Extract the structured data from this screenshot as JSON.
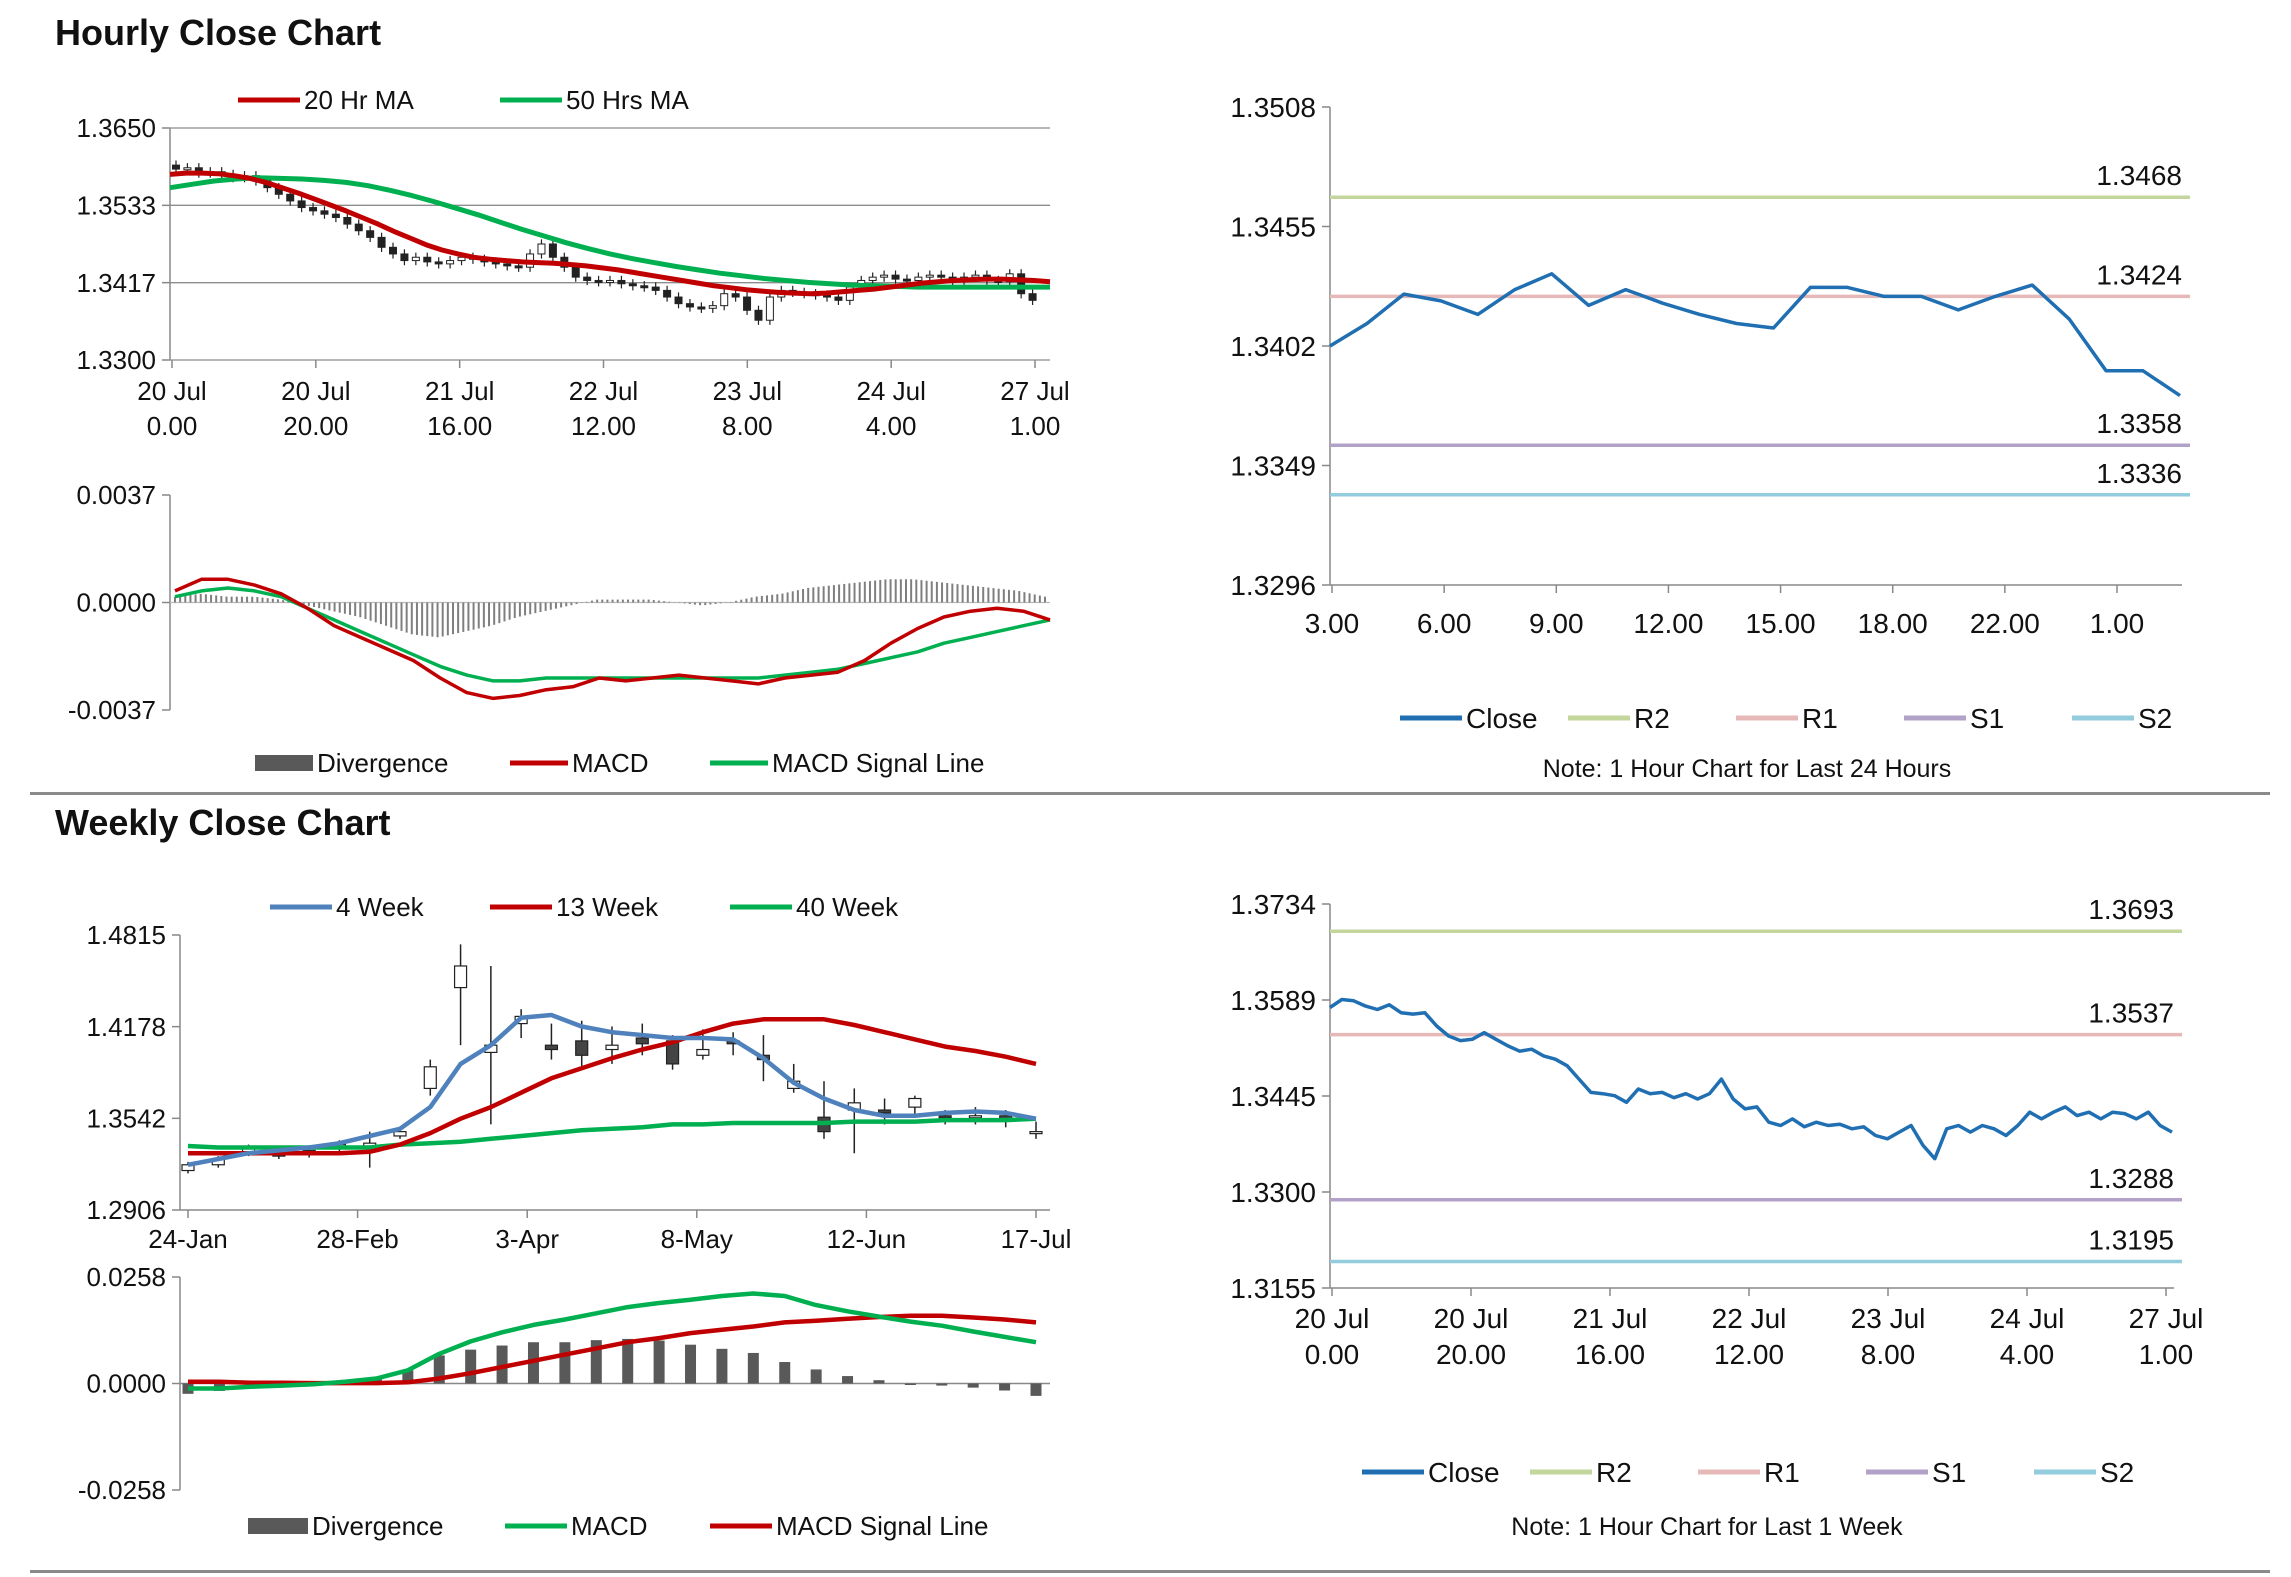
{
  "sections": {
    "hourly_title": "Hourly Close Chart",
    "weekly_title": "Weekly Close Chart"
  },
  "colors": {
    "red": "#c00000",
    "green": "#00b050",
    "blue_ma": "#4f81bd",
    "close": "#1f6fb2",
    "r2": "#c3d69b",
    "r1": "#e6b9b8",
    "s1": "#b3a2c7",
    "s2": "#93cddd",
    "div": "#595959"
  },
  "chart_data": [
    {
      "id": "hourly_price",
      "type": "candlestick",
      "title": "",
      "legend": [
        "20 Hr MA",
        "50 Hrs MA"
      ],
      "yticks": [
        "1.3650",
        "1.3533",
        "1.3417",
        "1.3300"
      ],
      "ylim": [
        1.33,
        1.365
      ],
      "xticks": [
        [
          "20 Jul",
          "0.00"
        ],
        [
          "20 Jul",
          "20.00"
        ],
        [
          "21 Jul",
          "16.00"
        ],
        [
          "22 Jul",
          "12.00"
        ],
        [
          "23 Jul",
          "8.00"
        ],
        [
          "24 Jul",
          "4.00"
        ],
        [
          "27 Jul",
          "1.00"
        ]
      ],
      "close": [
        1.3588,
        1.359,
        1.3582,
        1.3584,
        1.358,
        1.3575,
        1.3578,
        1.357,
        1.356,
        1.355,
        1.354,
        1.353,
        1.3525,
        1.352,
        1.3515,
        1.3505,
        1.3495,
        1.3485,
        1.347,
        1.346,
        1.345,
        1.3455,
        1.3448,
        1.3445,
        1.345,
        1.3455,
        1.3452,
        1.3448,
        1.3445,
        1.3442,
        1.344,
        1.346,
        1.3475,
        1.3455,
        1.344,
        1.3425,
        1.342,
        1.3418,
        1.342,
        1.3415,
        1.3412,
        1.341,
        1.3405,
        1.3395,
        1.3385,
        1.338,
        1.3378,
        1.3382,
        1.34,
        1.3395,
        1.3375,
        1.336,
        1.3395,
        1.3405,
        1.3402,
        1.34,
        1.3398,
        1.3395,
        1.339,
        1.341,
        1.342,
        1.3425,
        1.3428,
        1.3422,
        1.342,
        1.3425,
        1.3428,
        1.3425,
        1.342,
        1.3425,
        1.3428,
        1.342,
        1.3418,
        1.343,
        1.34,
        1.339
      ],
      "ma20": [
        1.358,
        1.3582,
        1.3582,
        1.3581,
        1.3578,
        1.3574,
        1.3568,
        1.356,
        1.3552,
        1.3543,
        1.3534,
        1.3525,
        1.3515,
        1.3505,
        1.3494,
        1.3484,
        1.3474,
        1.3466,
        1.346,
        1.3455,
        1.3452,
        1.345,
        1.3448,
        1.3447,
        1.3446,
        1.3444,
        1.3442,
        1.3439,
        1.3436,
        1.3432,
        1.3428,
        1.3424,
        1.342,
        1.3416,
        1.3412,
        1.3409,
        1.3406,
        1.3404,
        1.3402,
        1.3401,
        1.34,
        1.3401,
        1.3403,
        1.3405,
        1.3407,
        1.341,
        1.3413,
        1.3416,
        1.3418,
        1.342,
        1.3421,
        1.3422,
        1.3422,
        1.3421,
        1.342,
        1.3418
      ],
      "ma50": [
        1.356,
        1.3565,
        1.357,
        1.3573,
        1.3575,
        1.3574,
        1.3573,
        1.3571,
        1.3568,
        1.3563,
        1.3556,
        1.3548,
        1.3539,
        1.3529,
        1.3519,
        1.3508,
        1.3497,
        1.3487,
        1.3477,
        1.3468,
        1.346,
        1.3453,
        1.3447,
        1.3441,
        1.3436,
        1.3431,
        1.3427,
        1.3423,
        1.342,
        1.3417,
        1.3415,
        1.3413,
        1.3412,
        1.3411,
        1.341,
        1.341,
        1.341,
        1.341,
        1.341,
        1.341,
        1.341
      ]
    },
    {
      "id": "hourly_macd",
      "type": "macd",
      "legend": [
        "Divergence",
        "MACD",
        "MACD Signal Line"
      ],
      "yticks": [
        "0.0037",
        "0.0000",
        "-0.0037"
      ],
      "ylim": [
        -0.0037,
        0.0037
      ],
      "macd": [
        0.0004,
        0.0008,
        0.0008,
        0.0006,
        0.0003,
        -0.0002,
        -0.0008,
        -0.0012,
        -0.0016,
        -0.002,
        -0.0026,
        -0.0031,
        -0.0033,
        -0.0032,
        -0.003,
        -0.0029,
        -0.0026,
        -0.0027,
        -0.0026,
        -0.0025,
        -0.0026,
        -0.0027,
        -0.0028,
        -0.0026,
        -0.0025,
        -0.0024,
        -0.002,
        -0.0014,
        -0.0009,
        -0.0005,
        -0.0003,
        -0.0002,
        -0.0003,
        -0.0006
      ],
      "signal": [
        0.0002,
        0.0004,
        0.0005,
        0.0004,
        0.0002,
        -0.0002,
        -0.0006,
        -0.001,
        -0.0014,
        -0.0018,
        -0.0022,
        -0.0025,
        -0.0027,
        -0.0027,
        -0.0026,
        -0.0026,
        -0.0026,
        -0.0026,
        -0.0026,
        -0.0026,
        -0.0026,
        -0.0026,
        -0.0026,
        -0.0025,
        -0.0024,
        -0.0023,
        -0.0021,
        -0.0019,
        -0.0017,
        -0.0014,
        -0.0012,
        -0.001,
        -0.0008,
        -0.0006
      ],
      "divergence": [
        0.0002,
        0.0003,
        0.0002,
        0.0002,
        0.0001,
        -0.0001,
        -0.0003,
        -0.0005,
        -0.0008,
        -0.0011,
        -0.0012,
        -0.001,
        -0.0008,
        -0.0005,
        -0.0003,
        -0.0001,
        0.0001,
        0.0001,
        0.0001,
        0.0,
        -0.0001,
        0.0,
        0.0002,
        0.0003,
        0.0005,
        0.0006,
        0.0007,
        0.0008,
        0.0008,
        0.0007,
        0.0006,
        0.0005,
        0.0004,
        0.0002
      ]
    },
    {
      "id": "hourly_close",
      "type": "line",
      "legend": [
        "Close",
        "R2",
        "R1",
        "S1",
        "S2"
      ],
      "note": "Note: 1 Hour Chart for Last 24 Hours",
      "yticks": [
        "1.3508",
        "1.3455",
        "1.3402",
        "1.3349",
        "1.3296"
      ],
      "ylim": [
        1.3296,
        1.3508
      ],
      "xticks": [
        "3.00",
        "6.00",
        "9.00",
        "12.00",
        "15.00",
        "18.00",
        "22.00",
        "1.00"
      ],
      "close": [
        1.3402,
        1.3412,
        1.3425,
        1.3422,
        1.3416,
        1.3427,
        1.3434,
        1.342,
        1.3427,
        1.3421,
        1.3416,
        1.3412,
        1.341,
        1.3428,
        1.3428,
        1.3424,
        1.3424,
        1.3418,
        1.3424,
        1.3429,
        1.3414,
        1.3391,
        1.3391,
        1.338
      ],
      "levels": [
        {
          "name": "R2",
          "value": 1.3468,
          "label": "1.3468"
        },
        {
          "name": "R1",
          "value": 1.3424,
          "label": "1.3424"
        },
        {
          "name": "S1",
          "value": 1.3358,
          "label": "1.3358"
        },
        {
          "name": "S2",
          "value": 1.3336,
          "label": "1.3336"
        }
      ]
    },
    {
      "id": "weekly_price",
      "type": "candlestick",
      "legend": [
        "4 Week",
        "13 Week",
        "40 Week"
      ],
      "yticks": [
        "1.4815",
        "1.4178",
        "1.3542",
        "1.2906"
      ],
      "ylim": [
        1.2906,
        1.4815
      ],
      "xticks": [
        "24-Jan",
        "28-Feb",
        "3-Apr",
        "8-May",
        "12-Jun",
        "17-Jul"
      ],
      "candles": [
        [
          1.318,
          1.322,
          1.316,
          1.324
        ],
        [
          1.322,
          1.326,
          1.32,
          1.328
        ],
        [
          1.33,
          1.334,
          1.328,
          1.336
        ],
        [
          1.328,
          1.33,
          1.326,
          1.333
        ],
        [
          1.33,
          1.332,
          1.327,
          1.335
        ],
        [
          1.333,
          1.336,
          1.331,
          1.339
        ],
        [
          1.335,
          1.337,
          1.32,
          1.345
        ],
        [
          1.342,
          1.345,
          1.34,
          1.348
        ],
        [
          1.375,
          1.39,
          1.37,
          1.395
        ],
        [
          1.445,
          1.46,
          1.405,
          1.475
        ],
        [
          1.4,
          1.405,
          1.35,
          1.46
        ],
        [
          1.42,
          1.425,
          1.41,
          1.43
        ],
        [
          1.405,
          1.402,
          1.395,
          1.42
        ],
        [
          1.408,
          1.398,
          1.388,
          1.422
        ],
        [
          1.402,
          1.405,
          1.392,
          1.418
        ],
        [
          1.41,
          1.406,
          1.398,
          1.42
        ],
        [
          1.408,
          1.392,
          1.388,
          1.412
        ],
        [
          1.398,
          1.402,
          1.395,
          1.416
        ],
        [
          1.408,
          1.406,
          1.398,
          1.414
        ],
        [
          1.398,
          1.395,
          1.38,
          1.412
        ],
        [
          1.375,
          1.38,
          1.372,
          1.392
        ],
        [
          1.355,
          1.345,
          1.34,
          1.38
        ],
        [
          1.36,
          1.365,
          1.33,
          1.375
        ],
        [
          1.36,
          1.358,
          1.35,
          1.368
        ],
        [
          1.362,
          1.368,
          1.355,
          1.37
        ],
        [
          1.356,
          1.355,
          1.35,
          1.36
        ],
        [
          1.356,
          1.356,
          1.35,
          1.362
        ],
        [
          1.356,
          1.354,
          1.348,
          1.36
        ],
        [
          1.345,
          1.345,
          1.34,
          1.352
        ]
      ],
      "wk4": [
        1.322,
        1.326,
        1.33,
        1.332,
        1.334,
        1.337,
        1.342,
        1.347,
        1.362,
        1.392,
        1.405,
        1.424,
        1.426,
        1.418,
        1.414,
        1.412,
        1.41,
        1.41,
        1.409,
        1.396,
        1.379,
        1.368,
        1.36,
        1.356,
        1.356,
        1.358,
        1.359,
        1.358,
        1.354
      ],
      "wk13": [
        1.33,
        1.33,
        1.33,
        1.33,
        1.33,
        1.33,
        1.331,
        1.336,
        1.344,
        1.354,
        1.362,
        1.372,
        1.382,
        1.389,
        1.396,
        1.402,
        1.407,
        1.414,
        1.42,
        1.423,
        1.423,
        1.423,
        1.419,
        1.414,
        1.409,
        1.404,
        1.401,
        1.397,
        1.392
      ],
      "wk40": [
        1.335,
        1.334,
        1.334,
        1.334,
        1.334,
        1.334,
        1.334,
        1.336,
        1.337,
        1.338,
        1.34,
        1.342,
        1.344,
        1.346,
        1.347,
        1.348,
        1.35,
        1.35,
        1.351,
        1.351,
        1.351,
        1.351,
        1.352,
        1.352,
        1.352,
        1.353,
        1.353,
        1.353,
        1.354
      ]
    },
    {
      "id": "weekly_macd",
      "type": "macd",
      "legend": [
        "Divergence",
        "MACD",
        "MACD Signal Line"
      ],
      "yticks": [
        "0.0258",
        "0.0000",
        "-0.0258"
      ],
      "ylim": [
        -0.0258,
        0.0258
      ],
      "macd": [
        -0.0012,
        -0.0012,
        -0.0008,
        -0.0005,
        -0.0002,
        0.0004,
        0.0012,
        0.0032,
        0.0072,
        0.0102,
        0.0124,
        0.0142,
        0.0155,
        0.017,
        0.0185,
        0.0195,
        0.0203,
        0.0212,
        0.0218,
        0.0212,
        0.019,
        0.0175,
        0.0162,
        0.015,
        0.014,
        0.0126,
        0.0113,
        0.01
      ],
      "signal": [
        0.0004,
        0.0004,
        0.0002,
        0.0002,
        0.0001,
        0.0001,
        0.0001,
        0.0003,
        0.0012,
        0.0025,
        0.004,
        0.0055,
        0.007,
        0.0085,
        0.01,
        0.011,
        0.0122,
        0.013,
        0.0138,
        0.0148,
        0.0152,
        0.0157,
        0.0161,
        0.0164,
        0.0164,
        0.016,
        0.0155,
        0.0148
      ],
      "divergence": [
        -0.0025,
        -0.0018,
        -0.0008,
        -0.0004,
        -0.0002,
        0.0003,
        0.0012,
        0.0032,
        0.0068,
        0.0082,
        0.0092,
        0.01,
        0.01,
        0.0105,
        0.0108,
        0.0104,
        0.0094,
        0.0084,
        0.0074,
        0.0052,
        0.0034,
        0.0018,
        0.0008,
        0.0,
        -0.0005,
        -0.001,
        -0.0017,
        -0.003
      ]
    },
    {
      "id": "weekly_close",
      "type": "line",
      "legend": [
        "Close",
        "R2",
        "R1",
        "S1",
        "S2"
      ],
      "note": "Note: 1 Hour Chart for  Last 1 Week",
      "yticks": [
        "1.3734",
        "1.3589",
        "1.3445",
        "1.3300",
        "1.3155"
      ],
      "ylim": [
        1.3155,
        1.3734
      ],
      "xticks": [
        [
          "20 Jul",
          "0.00"
        ],
        [
          "20 Jul",
          "20.00"
        ],
        [
          "21 Jul",
          "16.00"
        ],
        [
          "22 Jul",
          "12.00"
        ],
        [
          "23 Jul",
          "8.00"
        ],
        [
          "24 Jul",
          "4.00"
        ],
        [
          "27 Jul",
          "1.00"
        ]
      ],
      "close": [
        1.3578,
        1.359,
        1.3588,
        1.358,
        1.3575,
        1.3582,
        1.357,
        1.3568,
        1.357,
        1.355,
        1.3535,
        1.3528,
        1.353,
        1.354,
        1.353,
        1.352,
        1.3512,
        1.3515,
        1.3505,
        1.35,
        1.349,
        1.347,
        1.345,
        1.3448,
        1.3445,
        1.3435,
        1.3455,
        1.3448,
        1.345,
        1.3442,
        1.3448,
        1.344,
        1.3448,
        1.347,
        1.344,
        1.3425,
        1.3428,
        1.3405,
        1.34,
        1.341,
        1.3398,
        1.3405,
        1.34,
        1.3402,
        1.3395,
        1.3398,
        1.3385,
        1.338,
        1.339,
        1.34,
        1.337,
        1.335,
        1.3395,
        1.34,
        1.339,
        1.34,
        1.3395,
        1.3385,
        1.34,
        1.342,
        1.341,
        1.342,
        1.3428,
        1.3415,
        1.342,
        1.341,
        1.342,
        1.3418,
        1.341,
        1.342,
        1.34,
        1.339
      ],
      "levels": [
        {
          "name": "R2",
          "value": 1.3693,
          "label": "1.3693"
        },
        {
          "name": "R1",
          "value": 1.3537,
          "label": "1.3537"
        },
        {
          "name": "S1",
          "value": 1.3288,
          "label": "1.3288"
        },
        {
          "name": "S2",
          "value": 1.3195,
          "label": "1.3195"
        }
      ]
    }
  ]
}
